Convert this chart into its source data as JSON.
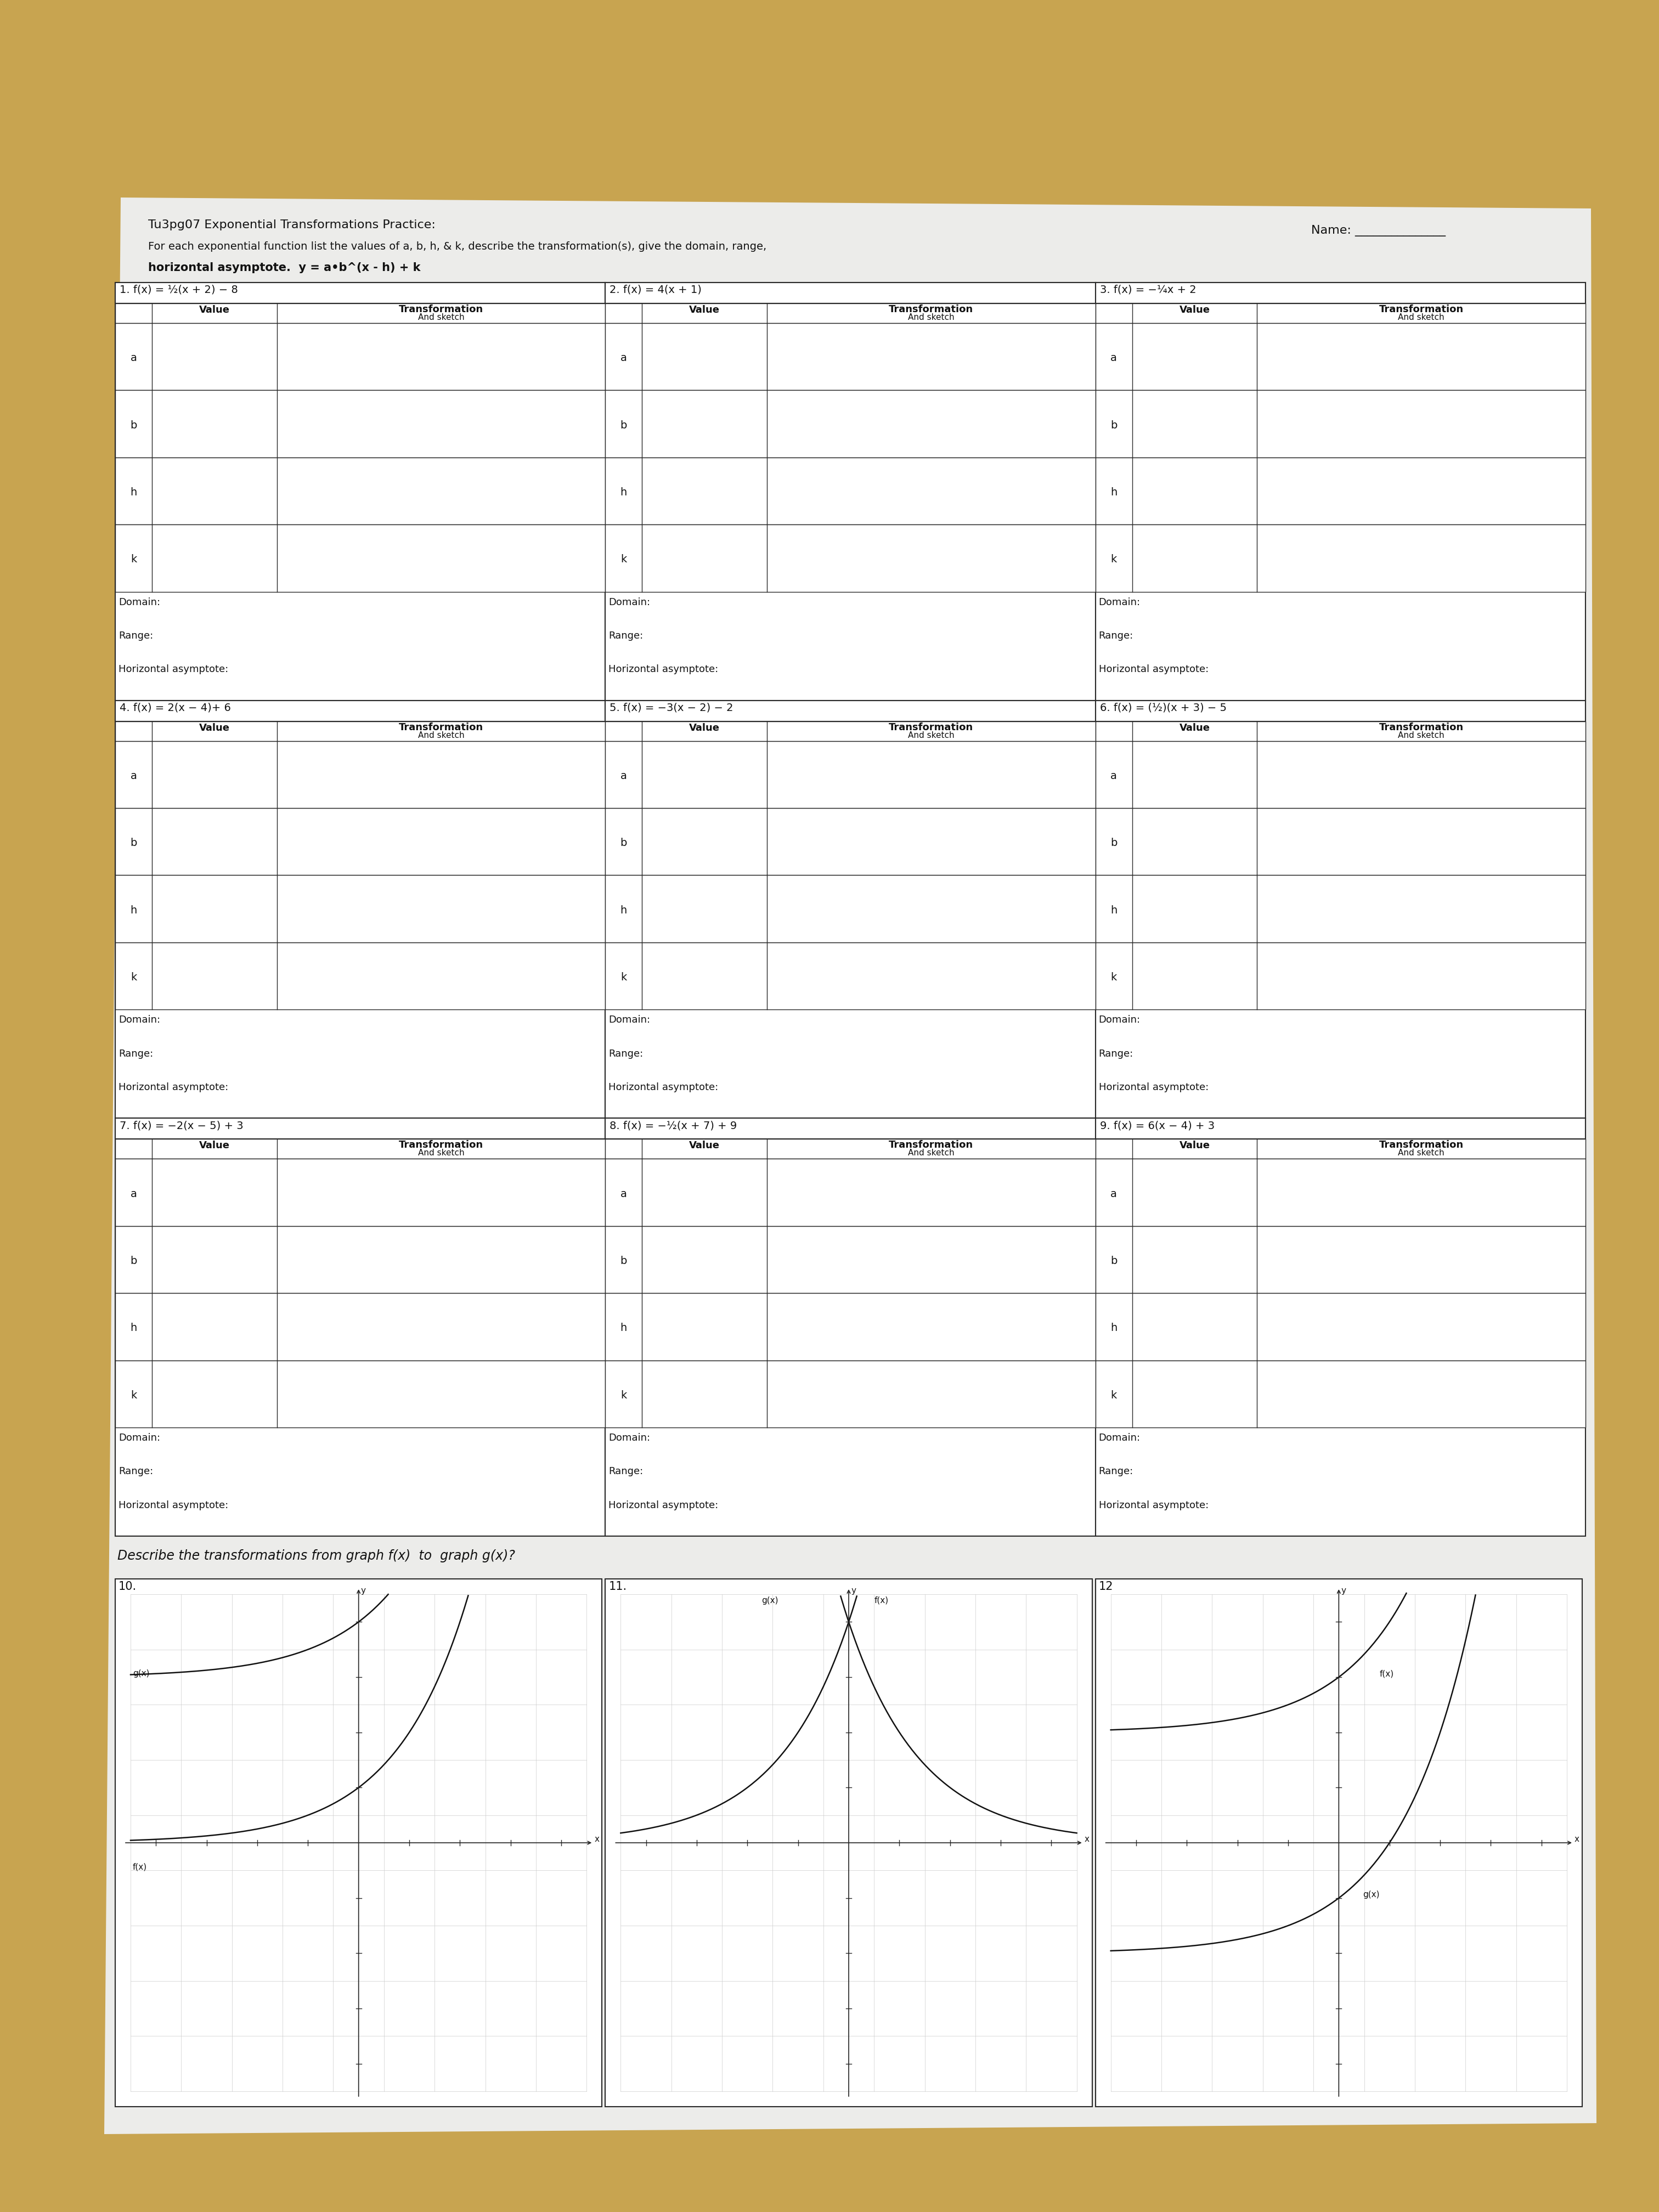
{
  "bg_color_top": "#c8a450",
  "bg_color": "#c8a450",
  "paper_color": "#ececea",
  "name_label": "Name: _______________",
  "title1": "Tu3pg07 Exponential Transformations Practice:",
  "title2": "For each exponential function list the values of a, b, h, & k, describe the transformation(s), give the domain, range,",
  "title3": "horizontal asymptote.  y = a•b^(x - h) + k",
  "problem_titles": [
    "1. f(x) = ½(x + 2) − 8",
    "2. f(x) = 4(x + 1)",
    "3. f(x) = −¼x + 2",
    "4. f(x) = 2(x − 4)+ 6",
    "5. f(x) = −3(x − 2) − 2",
    "6. f(x) = (½)(x + 3) − 5",
    "7. f(x) = −2(x − 5) + 3",
    "8. f(x) = −½(x + 7) + 9",
    "9. f(x) = 6(x − 4) + 3"
  ],
  "row_labels": [
    "a",
    "b",
    "h",
    "k"
  ],
  "bottom_labels": [
    "Domain:",
    "Range:",
    "Horizontal asymptote:"
  ],
  "describe_text": "Describe the transformations from graph f(x)  to  graph g(x)?",
  "graph_labels": [
    "10.",
    "11.",
    "12"
  ],
  "graph10_labels": [
    "g(x)",
    "f(x)"
  ],
  "graph11_labels": [
    "g(x)",
    "f(x)"
  ],
  "graph12_labels": [
    "f(x)",
    "g(x)"
  ]
}
